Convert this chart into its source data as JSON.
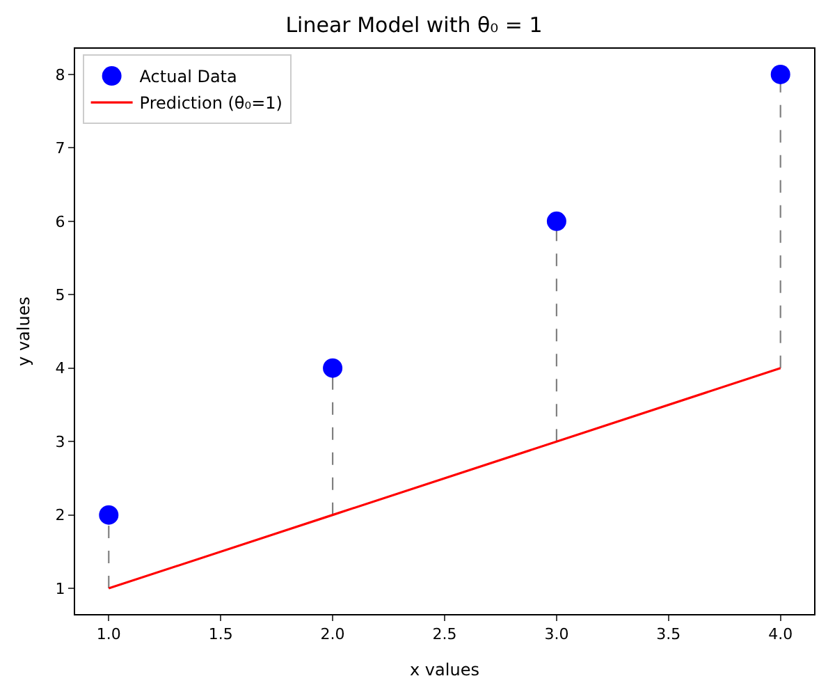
{
  "chart_data": {
    "type": "scatter",
    "title": "Linear Model with θ₀ = 1",
    "xlabel": "x values",
    "ylabel": "y values",
    "xlim": [
      0.85,
      4.15
    ],
    "ylim": [
      0.65,
      8.35
    ],
    "xticks": [
      {
        "value": 1.0,
        "label": "1.0"
      },
      {
        "value": 1.5,
        "label": "1.5"
      },
      {
        "value": 2.0,
        "label": "2.0"
      },
      {
        "value": 2.5,
        "label": "2.5"
      },
      {
        "value": 3.0,
        "label": "3.0"
      },
      {
        "value": 3.5,
        "label": "3.5"
      },
      {
        "value": 4.0,
        "label": "4.0"
      }
    ],
    "yticks": [
      1,
      2,
      3,
      4,
      5,
      6,
      7,
      8
    ],
    "grid": false,
    "legend": "top left",
    "series": [
      {
        "type": "line",
        "color": "#808080",
        "line_style": "dashed",
        "marker": "none",
        "x": [
          1,
          1
        ],
        "values": [
          1,
          2
        ]
      },
      {
        "type": "line",
        "color": "#808080",
        "line_style": "dashed",
        "marker": "none",
        "x": [
          2,
          2
        ],
        "values": [
          2,
          4
        ]
      },
      {
        "type": "line",
        "color": "#808080",
        "line_style": "dashed",
        "marker": "none",
        "x": [
          3,
          3
        ],
        "values": [
          3,
          6
        ]
      },
      {
        "type": "line",
        "color": "#808080",
        "line_style": "dashed",
        "marker": "none",
        "x": [
          4,
          4
        ],
        "values": [
          4,
          8
        ]
      },
      {
        "name": "Actual Data",
        "color": "#0000ff",
        "marker": "circle",
        "x": [
          1,
          2,
          3,
          4
        ],
        "values": [
          2,
          4,
          6,
          8
        ]
      },
      {
        "type": "line",
        "name": "Prediction (θ₀=1)",
        "color": "#ff0000",
        "line_style": "solid",
        "marker": "none",
        "x": [
          1,
          2,
          3,
          4
        ],
        "values": [
          1,
          2,
          3,
          4
        ]
      }
    ]
  }
}
